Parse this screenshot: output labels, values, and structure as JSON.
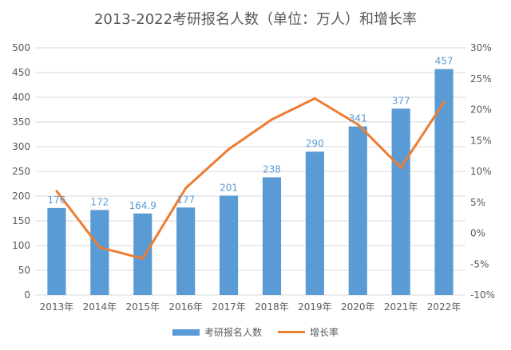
{
  "chart_data": {
    "type": "bar",
    "title": "2013-2022考研报名人数（单位：万人）和增长率",
    "categories": [
      "2013年",
      "2014年",
      "2015年",
      "2016年",
      "2017年",
      "2018年",
      "2019年",
      "2020年",
      "2021年",
      "2022年"
    ],
    "series": [
      {
        "name": "考研报名人数",
        "type": "bar",
        "axis": "left",
        "color": "#5b9bd5",
        "values": [
          176,
          172,
          164.9,
          177,
          201,
          238,
          290,
          341,
          377,
          457
        ],
        "labels": [
          "176",
          "172",
          "164.9",
          "177",
          "201",
          "238",
          "290",
          "341",
          "377",
          "457"
        ]
      },
      {
        "name": "增长率",
        "type": "line",
        "axis": "right",
        "color": "#ed7d31",
        "values": [
          6.8,
          -2.3,
          -4.1,
          7.3,
          13.6,
          18.4,
          21.8,
          17.6,
          10.6,
          21.2
        ]
      }
    ],
    "y_left": {
      "min": 0,
      "max": 500,
      "step": 50,
      "ticks": [
        "0",
        "50",
        "100",
        "150",
        "200",
        "250",
        "300",
        "350",
        "400",
        "450",
        "500"
      ]
    },
    "y_right": {
      "min": -10,
      "max": 30,
      "step": 5,
      "ticks": [
        "-10%",
        "-5%",
        "0%",
        "5%",
        "10%",
        "15%",
        "20%",
        "25%",
        "30%"
      ]
    },
    "grid": true,
    "legend_position": "bottom"
  }
}
